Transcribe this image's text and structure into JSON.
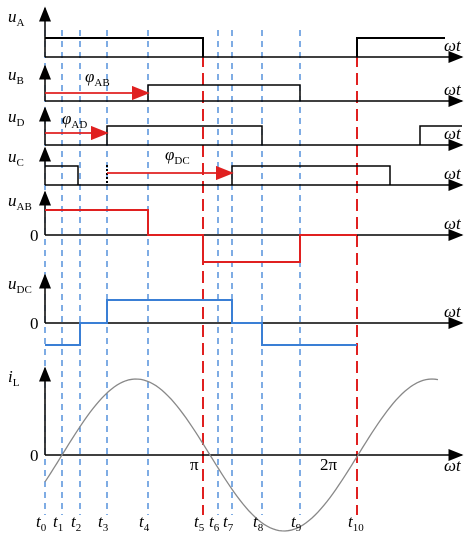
{
  "rows": [
    {
      "label": {
        "main": "u",
        "sub": "A"
      },
      "axis_label": "ωt"
    },
    {
      "label": {
        "main": "u",
        "sub": "B"
      },
      "axis_label": "ωt"
    },
    {
      "label": {
        "main": "u",
        "sub": "D"
      },
      "axis_label": "ωt"
    },
    {
      "label": {
        "main": "u",
        "sub": "C"
      },
      "axis_label": "ωt"
    },
    {
      "label": {
        "main": "u",
        "sub": "AB"
      },
      "axis_label": "ωt",
      "zero": "0"
    },
    {
      "label": {
        "main": "u",
        "sub": "DC"
      },
      "axis_label": "ωt",
      "zero": "0"
    },
    {
      "label": {
        "main": "i",
        "sub": "L"
      },
      "axis_label": "ωt",
      "zero": "0"
    }
  ],
  "phases": [
    {
      "main": "φ",
      "sub": "AB"
    },
    {
      "main": "φ",
      "sub": "AD"
    },
    {
      "main": "φ",
      "sub": "DC"
    }
  ],
  "angles": [
    "π",
    "2π"
  ],
  "times": [
    {
      "main": "t",
      "sub": "0"
    },
    {
      "main": "t",
      "sub": "1"
    },
    {
      "main": "t",
      "sub": "2"
    },
    {
      "main": "t",
      "sub": "3"
    },
    {
      "main": "t",
      "sub": "4"
    },
    {
      "main": "t",
      "sub": "5"
    },
    {
      "main": "t",
      "sub": "6"
    },
    {
      "main": "t",
      "sub": "7"
    },
    {
      "main": "t",
      "sub": "8"
    },
    {
      "main": "t",
      "sub": "9"
    },
    {
      "main": "t",
      "sub": "10"
    }
  ]
}
